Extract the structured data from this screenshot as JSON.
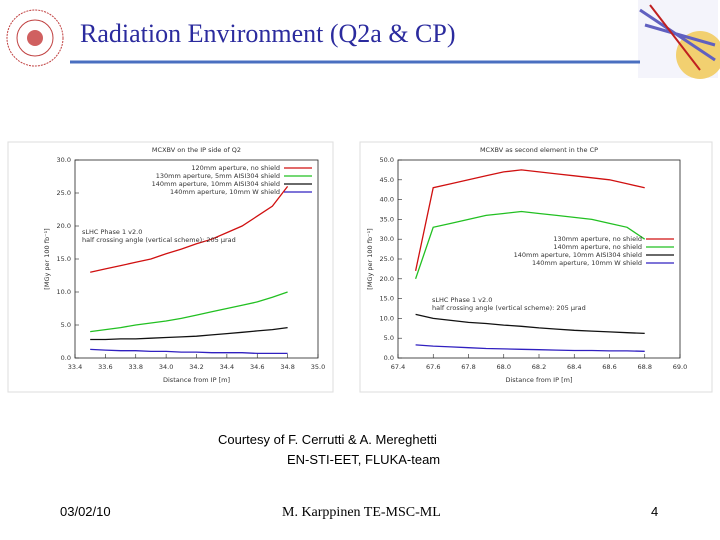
{
  "slide": {
    "title": "Radiation Environment (Q2a & CP)",
    "credit": [
      "Courtesy of F. Cerrutti & A. Mereghetti",
      "EN-STI-EET, FLUKA-team"
    ],
    "date": "03/02/10",
    "author": "M. Karppinen TE-MSC-ML",
    "page": "4"
  },
  "chart_data": [
    {
      "type": "line",
      "title": "MCXBV on the IP side of Q2",
      "x_label": "Distance from IP [m]",
      "y_label": "[MGy per 100 fb⁻¹]",
      "annotations": [
        "sLHC Phase 1 v2.0",
        "half crossing angle (vertical scheme): 205 μrad"
      ],
      "legend": "upper right",
      "grid": false,
      "x": [
        33.5,
        33.6,
        33.7,
        33.8,
        33.9,
        34.0,
        34.1,
        34.2,
        34.3,
        34.4,
        34.5,
        34.6,
        34.7,
        34.8
      ],
      "xlim": [
        33.4,
        35.0
      ],
      "xticks": [
        33.4,
        33.6,
        33.8,
        {
          "value": 34.0,
          "label": "34.0"
        },
        34.2,
        34.4,
        34.6,
        34.8,
        {
          "value": 35.0,
          "label": "35.0"
        }
      ],
      "ylim": [
        0,
        30
      ],
      "yticks": [
        {
          "value": 0,
          "label": "0.0"
        },
        {
          "value": 5,
          "label": "5.0"
        },
        {
          "value": 10,
          "label": "10.0"
        },
        {
          "value": 15,
          "label": "15.0"
        },
        {
          "value": 20,
          "label": "20.0"
        },
        {
          "value": 25,
          "label": "25.0"
        },
        {
          "value": 30,
          "label": "30.0"
        }
      ],
      "series": [
        {
          "name": "120mm aperture, no shield",
          "color": "#d01010",
          "values": [
            13,
            13.5,
            14,
            14.5,
            15,
            15.8,
            16.5,
            17.3,
            18,
            19,
            20,
            21.5,
            23,
            26
          ]
        },
        {
          "name": "130mm aperture, 5mm AISI304 shield",
          "color": "#22c022",
          "values": [
            4,
            4.3,
            4.6,
            5,
            5.3,
            5.6,
            6,
            6.5,
            7,
            7.5,
            8,
            8.5,
            9.2,
            10
          ]
        },
        {
          "name": "140mm aperture, 10mm AISI304 shield",
          "color": "#111111",
          "values": [
            2.8,
            2.8,
            2.9,
            2.9,
            3,
            3.1,
            3.2,
            3.3,
            3.5,
            3.7,
            3.9,
            4.1,
            4.3,
            4.6
          ]
        },
        {
          "name": "140mm aperture, 10mm W shield",
          "color": "#3020c0",
          "values": [
            1.3,
            1.2,
            1.1,
            1.1,
            1,
            1,
            0.9,
            0.9,
            0.8,
            0.8,
            0.8,
            0.7,
            0.7,
            0.7
          ]
        }
      ]
    },
    {
      "type": "line",
      "title": "MCXBV as second element in the CP",
      "x_label": "Distance from IP [m]",
      "y_label": "[MGy per 100 fb⁻¹]",
      "annotations": [
        "sLHC Phase 1 v2.0",
        "half crossing angle (vertical scheme): 205 μrad"
      ],
      "legend": "center right",
      "grid": false,
      "x": [
        67.5,
        67.6,
        67.7,
        67.8,
        67.9,
        68.0,
        68.1,
        68.2,
        68.3,
        68.4,
        68.5,
        68.6,
        68.7,
        68.8
      ],
      "xlim": [
        67.4,
        69.0
      ],
      "xticks": [
        67.4,
        67.6,
        67.8,
        {
          "value": 68.0,
          "label": "68.0"
        },
        68.2,
        68.4,
        68.6,
        68.8,
        {
          "value": 69.0,
          "label": "69.0"
        }
      ],
      "ylim": [
        0,
        50
      ],
      "yticks": [
        {
          "value": 0,
          "label": "0.0"
        },
        {
          "value": 5,
          "label": "5.0"
        },
        {
          "value": 10,
          "label": "10.0"
        },
        {
          "value": 15,
          "label": "15.0"
        },
        {
          "value": 20,
          "label": "20.0"
        },
        {
          "value": 25,
          "label": "25.0"
        },
        {
          "value": 30,
          "label": "30.0"
        },
        {
          "value": 35,
          "label": "35.0"
        },
        {
          "value": 40,
          "label": "40.0"
        },
        {
          "value": 45,
          "label": "45.0"
        },
        {
          "value": 50,
          "label": "50.0"
        }
      ],
      "series": [
        {
          "name": "130mm aperture, no shield",
          "color": "#d01010",
          "values": [
            22,
            43,
            44,
            45,
            46,
            47,
            47.5,
            47,
            46.5,
            46,
            45.5,
            45,
            44,
            43
          ]
        },
        {
          "name": "140mm aperture, no shield",
          "color": "#22c022",
          "values": [
            20,
            33,
            34,
            35,
            36,
            36.5,
            37,
            36.5,
            36,
            35.5,
            35,
            34,
            33,
            30
          ]
        },
        {
          "name": "140mm aperture, 10mm AISI304 shield",
          "color": "#111111",
          "values": [
            11,
            10,
            9.5,
            9,
            8.7,
            8.3,
            8,
            7.6,
            7.3,
            7,
            6.8,
            6.6,
            6.4,
            6.2
          ]
        },
        {
          "name": "140mm aperture, 10mm W shield",
          "color": "#3020c0",
          "values": [
            3.3,
            3,
            2.8,
            2.6,
            2.4,
            2.3,
            2.2,
            2.1,
            2,
            1.9,
            1.9,
            1.8,
            1.8,
            1.7
          ]
        }
      ]
    }
  ]
}
